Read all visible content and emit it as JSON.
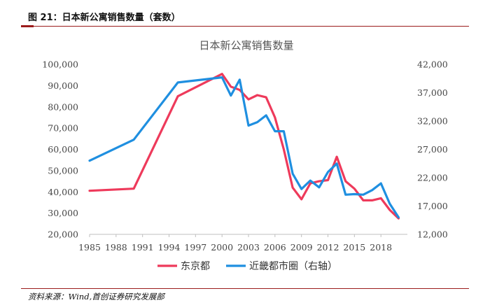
{
  "report": {
    "figure_title": "图 21：日本新公寓销售数量（套数）",
    "source": "资料来源：Wind,首创证券研究发展部"
  },
  "colors": {
    "series_tokyo": "#ee3a5b",
    "series_kinki": "#1f8fe0",
    "accent_rule": "#9b1b1b"
  },
  "chart_data": {
    "type": "line",
    "title": "日本新公寓销售数量",
    "xlabel": "",
    "ylabel": "",
    "x_ticks": [
      "1985",
      "1988",
      "1991",
      "1994",
      "1997",
      "2000",
      "2003",
      "2006",
      "2009",
      "2012",
      "2015",
      "2018"
    ],
    "xlim": [
      1985,
      2021
    ],
    "y_left": {
      "lim": [
        20000,
        100000
      ],
      "ticks": [
        "20,000",
        "30,000",
        "40,000",
        "50,000",
        "60,000",
        "70,000",
        "80,000",
        "90,000",
        "100,000"
      ]
    },
    "y_right": {
      "lim": [
        12000,
        42000
      ],
      "ticks": [
        "12,000",
        "17,000",
        "22,000",
        "27,000",
        "32,000",
        "37,000",
        "42,000"
      ]
    },
    "grid": false,
    "legend_position": "bottom",
    "series": [
      {
        "name": "东京都",
        "axis": "left",
        "x": [
          1985,
          1990,
          1995,
          2000,
          2001,
          2002,
          2003,
          2004,
          2005,
          2006,
          2007,
          2008,
          2009,
          2010,
          2011,
          2012,
          2013,
          2014,
          2015,
          2016,
          2017,
          2018,
          2019,
          2020
        ],
        "y": [
          40500,
          41500,
          85000,
          95500,
          89500,
          88000,
          83500,
          85500,
          84500,
          75000,
          60000,
          42000,
          36500,
          44000,
          45000,
          45500,
          56500,
          45000,
          41500,
          36000,
          36000,
          37000,
          31500,
          27500
        ]
      },
      {
        "name": "近畿都市圈（右轴）",
        "axis": "right",
        "x": [
          1985,
          1990,
          1995,
          2000,
          2001,
          2002,
          2003,
          2004,
          2005,
          2006,
          2007,
          2008,
          2009,
          2010,
          2011,
          2012,
          2013,
          2014,
          2015,
          2016,
          2017,
          2018,
          2019,
          2020
        ],
        "y": [
          25000,
          28700,
          38800,
          39700,
          36500,
          39300,
          31200,
          31800,
          33000,
          30200,
          30200,
          22700,
          20000,
          21500,
          20300,
          23000,
          24500,
          19000,
          19100,
          19000,
          19800,
          21000,
          17400,
          15000
        ]
      }
    ]
  }
}
